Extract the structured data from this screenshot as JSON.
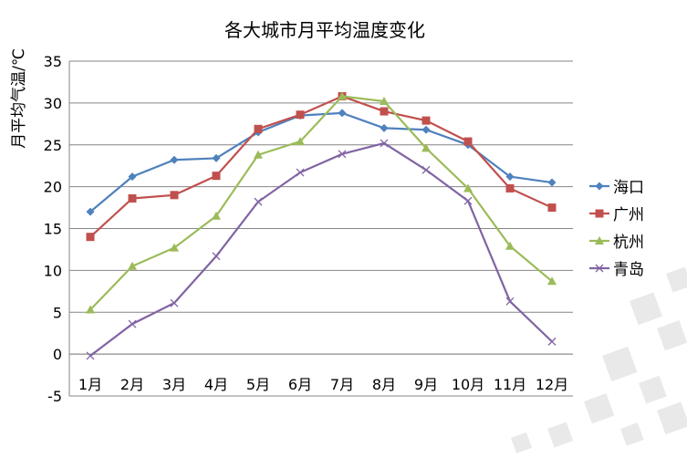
{
  "chart_data": {
    "type": "line",
    "title": "各大城市月平均温度变化",
    "xlabel": "",
    "ylabel": "月平均气温/℃",
    "categories": [
      "1月",
      "2月",
      "3月",
      "4月",
      "5月",
      "6月",
      "7月",
      "8月",
      "9月",
      "10月",
      "11月",
      "12月"
    ],
    "ylim": [
      -5,
      35
    ],
    "yticks": [
      -5,
      0,
      5,
      10,
      15,
      20,
      25,
      30,
      35
    ],
    "grid": true,
    "legend_position": "right",
    "series": [
      {
        "name": "海口",
        "color": "#4F81BD",
        "marker": "diamond",
        "values": [
          17.0,
          21.2,
          23.2,
          23.4,
          26.5,
          28.5,
          28.8,
          27.0,
          26.8,
          25.0,
          21.2,
          20.5
        ]
      },
      {
        "name": "广州",
        "color": "#C0504D",
        "marker": "square",
        "values": [
          14.0,
          18.6,
          19.0,
          21.3,
          26.9,
          28.6,
          30.8,
          29.0,
          27.9,
          25.4,
          19.8,
          17.5
        ]
      },
      {
        "name": "杭州",
        "color": "#9BBB59",
        "marker": "triangle",
        "values": [
          5.3,
          10.5,
          12.7,
          16.5,
          23.8,
          25.4,
          30.8,
          30.2,
          24.6,
          19.8,
          12.9,
          8.7
        ]
      },
      {
        "name": "青岛",
        "color": "#8064A2",
        "marker": "x",
        "values": [
          -0.2,
          3.6,
          6.1,
          11.7,
          18.2,
          21.7,
          23.9,
          25.2,
          22.0,
          18.3,
          6.3,
          1.5
        ]
      }
    ]
  }
}
